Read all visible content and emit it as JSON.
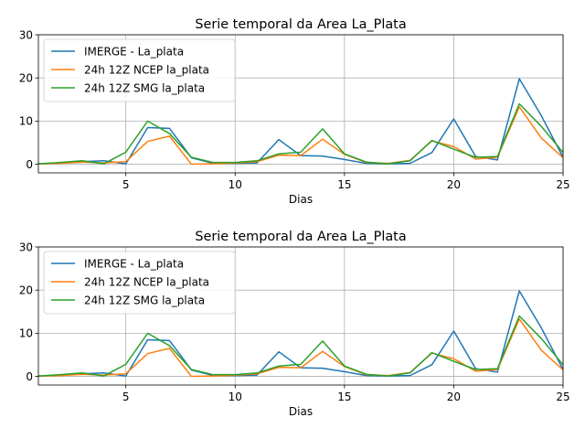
{
  "chart_data": [
    {
      "type": "line",
      "title": "Serie temporal da Area La_Plata",
      "xlabel": "Dias",
      "ylabel": "",
      "xlim": [
        1,
        25
      ],
      "ylim": [
        -2,
        30
      ],
      "x_ticks": [
        5,
        10,
        15,
        20,
        25
      ],
      "y_ticks": [
        0,
        10,
        20,
        30
      ],
      "grid": true,
      "legend_position": "top-left",
      "x": [
        1,
        2,
        3,
        4,
        5,
        6,
        7,
        8,
        9,
        10,
        11,
        12,
        13,
        14,
        15,
        16,
        17,
        18,
        19,
        20,
        21,
        22,
        23,
        24,
        25
      ],
      "series": [
        {
          "name": "IMERGE - La_plata",
          "color": "#1f77b4",
          "values": [
            0.1,
            0.3,
            0.6,
            0.8,
            0.1,
            8.5,
            8.3,
            1.5,
            0.2,
            0.2,
            0.3,
            5.7,
            2.0,
            1.9,
            1.1,
            0.2,
            0.1,
            0.2,
            2.7,
            10.5,
            1.8,
            1.0,
            19.8,
            11.3,
            1.6
          ]
        },
        {
          "name": "24h 12Z NCEP la_plata",
          "color": "#ff7f0e",
          "values": [
            0.1,
            0.2,
            0.5,
            0.3,
            0.6,
            5.3,
            6.5,
            0.0,
            0.1,
            0.3,
            0.6,
            2.1,
            2.0,
            5.8,
            2.3,
            0.4,
            0.2,
            0.9,
            5.4,
            4.1,
            1.2,
            1.6,
            13.3,
            6.1,
            1.5
          ]
        },
        {
          "name": "24h 12Z SMG la_plata",
          "color": "#2ca02c",
          "values": [
            0.1,
            0.4,
            0.8,
            0.1,
            2.8,
            10.0,
            7.1,
            1.6,
            0.4,
            0.4,
            0.8,
            2.4,
            2.8,
            8.2,
            2.4,
            0.5,
            0.1,
            0.8,
            5.5,
            3.5,
            1.6,
            1.8,
            14.0,
            8.8,
            2.7
          ]
        }
      ]
    },
    {
      "type": "line",
      "title": "Serie temporal da Area La_Plata",
      "xlabel": "Dias",
      "ylabel": "",
      "xlim": [
        1,
        25
      ],
      "ylim": [
        -2,
        30
      ],
      "x_ticks": [
        5,
        10,
        15,
        20,
        25
      ],
      "y_ticks": [
        0,
        10,
        20,
        30
      ],
      "grid": true,
      "legend_position": "top-left",
      "x": [
        1,
        2,
        3,
        4,
        5,
        6,
        7,
        8,
        9,
        10,
        11,
        12,
        13,
        14,
        15,
        16,
        17,
        18,
        19,
        20,
        21,
        22,
        23,
        24,
        25
      ],
      "series": [
        {
          "name": "IMERGE - La_plata",
          "color": "#1f77b4",
          "values": [
            0.1,
            0.3,
            0.6,
            0.8,
            0.1,
            8.5,
            8.3,
            1.5,
            0.2,
            0.2,
            0.3,
            5.7,
            2.0,
            1.9,
            1.1,
            0.2,
            0.1,
            0.2,
            2.7,
            10.5,
            1.8,
            1.0,
            19.8,
            11.3,
            1.6
          ]
        },
        {
          "name": "24h 12Z NCEP la_plata",
          "color": "#ff7f0e",
          "values": [
            0.1,
            0.2,
            0.5,
            0.3,
            0.6,
            5.3,
            6.5,
            0.0,
            0.1,
            0.3,
            0.6,
            2.1,
            2.0,
            5.8,
            2.3,
            0.4,
            0.2,
            0.9,
            5.4,
            4.1,
            1.2,
            1.6,
            13.3,
            6.1,
            1.5
          ]
        },
        {
          "name": "24h 12Z SMG la_plata",
          "color": "#2ca02c",
          "values": [
            0.1,
            0.4,
            0.8,
            0.1,
            2.8,
            10.0,
            7.1,
            1.6,
            0.4,
            0.4,
            0.8,
            2.4,
            2.8,
            8.2,
            2.4,
            0.5,
            0.1,
            0.8,
            5.5,
            3.5,
            1.6,
            1.8,
            14.0,
            8.8,
            2.7
          ]
        }
      ]
    }
  ]
}
